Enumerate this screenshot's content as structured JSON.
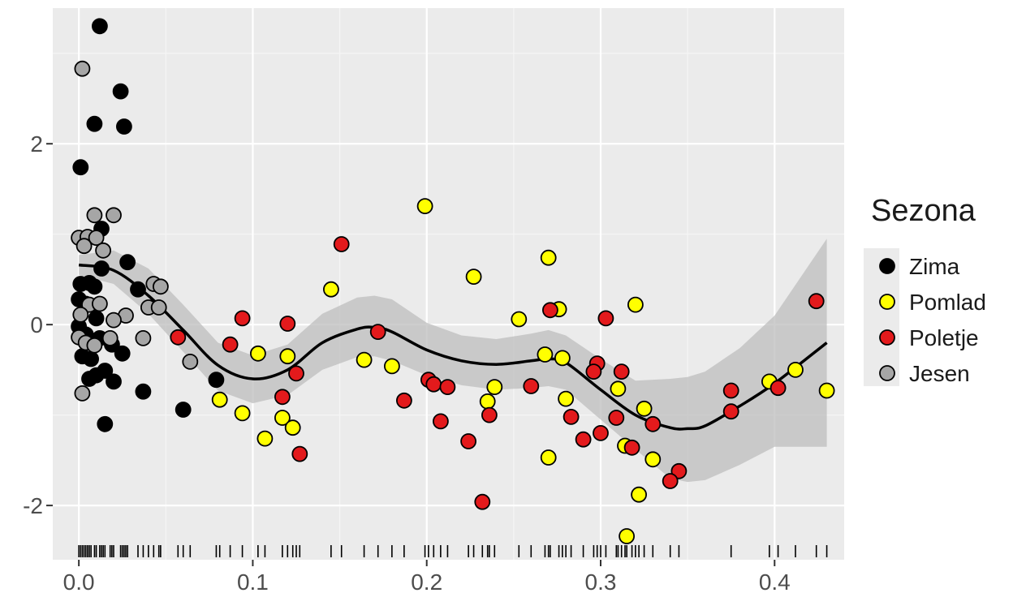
{
  "chart_data": {
    "type": "scatter",
    "title": "",
    "xlabel": "",
    "ylabel": "",
    "xlim": [
      -0.015,
      0.44
    ],
    "ylim": [
      -2.6,
      3.5
    ],
    "x_ticks": [
      0.0,
      0.1,
      0.2,
      0.3,
      0.4
    ],
    "x_tick_labels": [
      "0.0",
      "0.1",
      "0.2",
      "0.3",
      "0.4"
    ],
    "y_ticks": [
      -2,
      0,
      2
    ],
    "y_tick_labels": [
      "-2",
      "0",
      "2"
    ],
    "grid": true,
    "legend": {
      "title": "Sezona",
      "position": "right",
      "entries": [
        {
          "label": "Zima",
          "color": "#000000"
        },
        {
          "label": "Pomlad",
          "color": "#ffff00"
        },
        {
          "label": "Poletje",
          "color": "#e31a1c"
        },
        {
          "label": "Jesen",
          "color": "#a6a6a6"
        }
      ]
    },
    "series": [
      {
        "name": "Zima",
        "color": "#000000",
        "points": [
          [
            0.012,
            3.3
          ],
          [
            0.024,
            2.58
          ],
          [
            0.009,
            2.22
          ],
          [
            0.026,
            2.19
          ],
          [
            0.001,
            1.74
          ],
          [
            0.013,
            1.06
          ],
          [
            0.013,
            0.62
          ],
          [
            0.028,
            0.69
          ],
          [
            0.001,
            0.45
          ],
          [
            0.006,
            0.46
          ],
          [
            0.009,
            0.42
          ],
          [
            0.034,
            0.39
          ],
          [
            0.0,
            0.28
          ],
          [
            0.004,
            0.23
          ],
          [
            0.01,
            0.07
          ],
          [
            0.0,
            -0.02
          ],
          [
            0.004,
            -0.11
          ],
          [
            0.012,
            -0.15
          ],
          [
            0.019,
            -0.22
          ],
          [
            0.002,
            -0.35
          ],
          [
            0.007,
            -0.38
          ],
          [
            0.025,
            -0.32
          ],
          [
            0.015,
            -0.51
          ],
          [
            0.01,
            -0.56
          ],
          [
            0.006,
            -0.6
          ],
          [
            0.02,
            -0.63
          ],
          [
            0.037,
            -0.74
          ],
          [
            0.015,
            -1.1
          ],
          [
            0.06,
            -0.94
          ],
          [
            0.079,
            -0.61
          ]
        ]
      },
      {
        "name": "Pomlad",
        "color": "#ffff00",
        "points": [
          [
            0.199,
            1.31
          ],
          [
            0.227,
            0.53
          ],
          [
            0.27,
            0.74
          ],
          [
            0.145,
            0.39
          ],
          [
            0.253,
            0.06
          ],
          [
            0.276,
            0.17
          ],
          [
            0.32,
            0.22
          ],
          [
            0.103,
            -0.32
          ],
          [
            0.12,
            -0.35
          ],
          [
            0.164,
            -0.39
          ],
          [
            0.18,
            -0.46
          ],
          [
            0.268,
            -0.33
          ],
          [
            0.278,
            -0.37
          ],
          [
            0.239,
            -0.69
          ],
          [
            0.235,
            -0.85
          ],
          [
            0.081,
            -0.83
          ],
          [
            0.094,
            -0.98
          ],
          [
            0.117,
            -1.03
          ],
          [
            0.123,
            -1.14
          ],
          [
            0.107,
            -1.26
          ],
          [
            0.28,
            -0.82
          ],
          [
            0.31,
            -0.71
          ],
          [
            0.325,
            -0.93
          ],
          [
            0.314,
            -1.34
          ],
          [
            0.33,
            -1.49
          ],
          [
            0.27,
            -1.47
          ],
          [
            0.322,
            -1.88
          ],
          [
            0.315,
            -2.34
          ],
          [
            0.397,
            -0.63
          ],
          [
            0.412,
            -0.5
          ],
          [
            0.43,
            -0.73
          ]
        ]
      },
      {
        "name": "Poletje",
        "color": "#e31a1c",
        "points": [
          [
            0.151,
            0.89
          ],
          [
            0.424,
            0.26
          ],
          [
            0.094,
            0.07
          ],
          [
            0.303,
            0.07
          ],
          [
            0.271,
            0.16
          ],
          [
            0.12,
            0.01
          ],
          [
            0.172,
            -0.08
          ],
          [
            0.057,
            -0.14
          ],
          [
            0.087,
            -0.22
          ],
          [
            0.125,
            -0.54
          ],
          [
            0.298,
            -0.43
          ],
          [
            0.296,
            -0.52
          ],
          [
            0.312,
            -0.52
          ],
          [
            0.201,
            -0.61
          ],
          [
            0.204,
            -0.66
          ],
          [
            0.212,
            -0.69
          ],
          [
            0.26,
            -0.68
          ],
          [
            0.375,
            -0.73
          ],
          [
            0.402,
            -0.7
          ],
          [
            0.117,
            -0.8
          ],
          [
            0.187,
            -0.84
          ],
          [
            0.236,
            -1.0
          ],
          [
            0.208,
            -1.07
          ],
          [
            0.283,
            -1.02
          ],
          [
            0.309,
            -1.03
          ],
          [
            0.33,
            -1.1
          ],
          [
            0.375,
            -0.96
          ],
          [
            0.3,
            -1.2
          ],
          [
            0.29,
            -1.27
          ],
          [
            0.224,
            -1.29
          ],
          [
            0.127,
            -1.43
          ],
          [
            0.318,
            -1.36
          ],
          [
            0.345,
            -1.62
          ],
          [
            0.34,
            -1.73
          ],
          [
            0.232,
            -1.96
          ]
        ]
      },
      {
        "name": "Jesen",
        "color": "#a6a6a6",
        "points": [
          [
            0.002,
            2.83
          ],
          [
            0.009,
            1.21
          ],
          [
            0.02,
            1.21
          ],
          [
            0.0,
            0.96
          ],
          [
            0.005,
            0.97
          ],
          [
            0.01,
            0.96
          ],
          [
            0.014,
            0.82
          ],
          [
            0.003,
            0.87
          ],
          [
            0.043,
            0.45
          ],
          [
            0.047,
            0.42
          ],
          [
            0.04,
            0.19
          ],
          [
            0.046,
            0.19
          ],
          [
            0.006,
            0.22
          ],
          [
            0.012,
            0.23
          ],
          [
            0.027,
            0.1
          ],
          [
            0.02,
            0.05
          ],
          [
            0.001,
            0.11
          ],
          [
            0.0,
            -0.14
          ],
          [
            0.004,
            -0.2
          ],
          [
            0.009,
            -0.23
          ],
          [
            0.018,
            -0.15
          ],
          [
            0.037,
            -0.15
          ],
          [
            0.064,
            -0.41
          ],
          [
            0.002,
            -0.76
          ]
        ]
      }
    ],
    "smooth_line": {
      "x": [
        0.0,
        0.02,
        0.04,
        0.06,
        0.08,
        0.1,
        0.12,
        0.14,
        0.16,
        0.17,
        0.18,
        0.2,
        0.22,
        0.24,
        0.26,
        0.27,
        0.28,
        0.3,
        0.32,
        0.34,
        0.35,
        0.36,
        0.38,
        0.4,
        0.43
      ],
      "y": [
        0.66,
        0.6,
        0.32,
        -0.06,
        -0.45,
        -0.6,
        -0.5,
        -0.2,
        -0.05,
        -0.03,
        -0.08,
        -0.28,
        -0.4,
        -0.44,
        -0.4,
        -0.38,
        -0.42,
        -0.72,
        -1.0,
        -1.14,
        -1.15,
        -1.12,
        -0.9,
        -0.65,
        -0.2
      ],
      "ci_lower": [
        0.55,
        0.45,
        0.12,
        -0.3,
        -0.73,
        -0.87,
        -0.78,
        -0.5,
        -0.36,
        -0.35,
        -0.4,
        -0.56,
        -0.67,
        -0.72,
        -0.7,
        -0.68,
        -0.72,
        -1.05,
        -1.38,
        -1.7,
        -1.74,
        -1.72,
        -1.55,
        -1.35,
        -1.35
      ],
      "ci_upper": [
        0.77,
        0.82,
        0.62,
        0.22,
        -0.2,
        -0.34,
        -0.22,
        0.12,
        0.3,
        0.32,
        0.28,
        0.02,
        -0.12,
        -0.16,
        -0.1,
        -0.06,
        -0.12,
        -0.38,
        -0.62,
        -0.6,
        -0.58,
        -0.52,
        -0.26,
        0.1,
        0.95
      ]
    },
    "rug_x": [
      0.0,
      0.001,
      0.002,
      0.003,
      0.004,
      0.005,
      0.006,
      0.007,
      0.009,
      0.01,
      0.012,
      0.013,
      0.014,
      0.015,
      0.018,
      0.019,
      0.02,
      0.024,
      0.025,
      0.026,
      0.027,
      0.028,
      0.034,
      0.037,
      0.04,
      0.043,
      0.046,
      0.047,
      0.057,
      0.06,
      0.064,
      0.079,
      0.081,
      0.087,
      0.094,
      0.103,
      0.107,
      0.117,
      0.12,
      0.123,
      0.125,
      0.127,
      0.145,
      0.151,
      0.164,
      0.172,
      0.18,
      0.187,
      0.199,
      0.201,
      0.204,
      0.208,
      0.212,
      0.224,
      0.227,
      0.232,
      0.235,
      0.236,
      0.239,
      0.253,
      0.26,
      0.268,
      0.27,
      0.271,
      0.276,
      0.278,
      0.28,
      0.283,
      0.29,
      0.296,
      0.298,
      0.3,
      0.303,
      0.309,
      0.31,
      0.312,
      0.314,
      0.315,
      0.318,
      0.32,
      0.322,
      0.325,
      0.33,
      0.34,
      0.345,
      0.375,
      0.397,
      0.402,
      0.412,
      0.424,
      0.43
    ]
  }
}
